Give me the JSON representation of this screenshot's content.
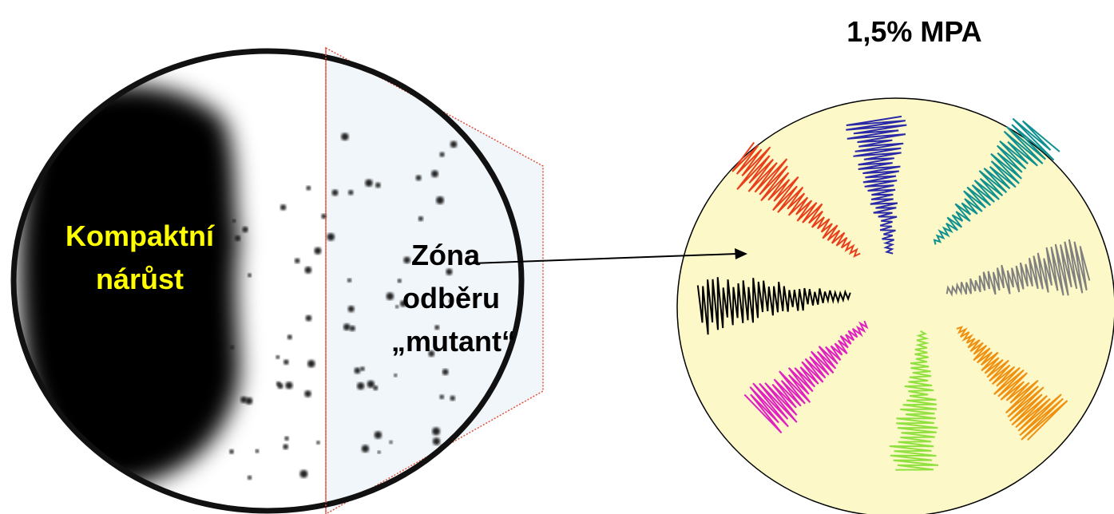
{
  "header": {
    "title": "1,5% MPA"
  },
  "labels": {
    "compact": {
      "lines": [
        "Kompaktní",
        "nárůst"
      ]
    },
    "zone": {
      "lines": [
        "Zóna",
        "odběru",
        "„mutant“"
      ]
    }
  }
}
